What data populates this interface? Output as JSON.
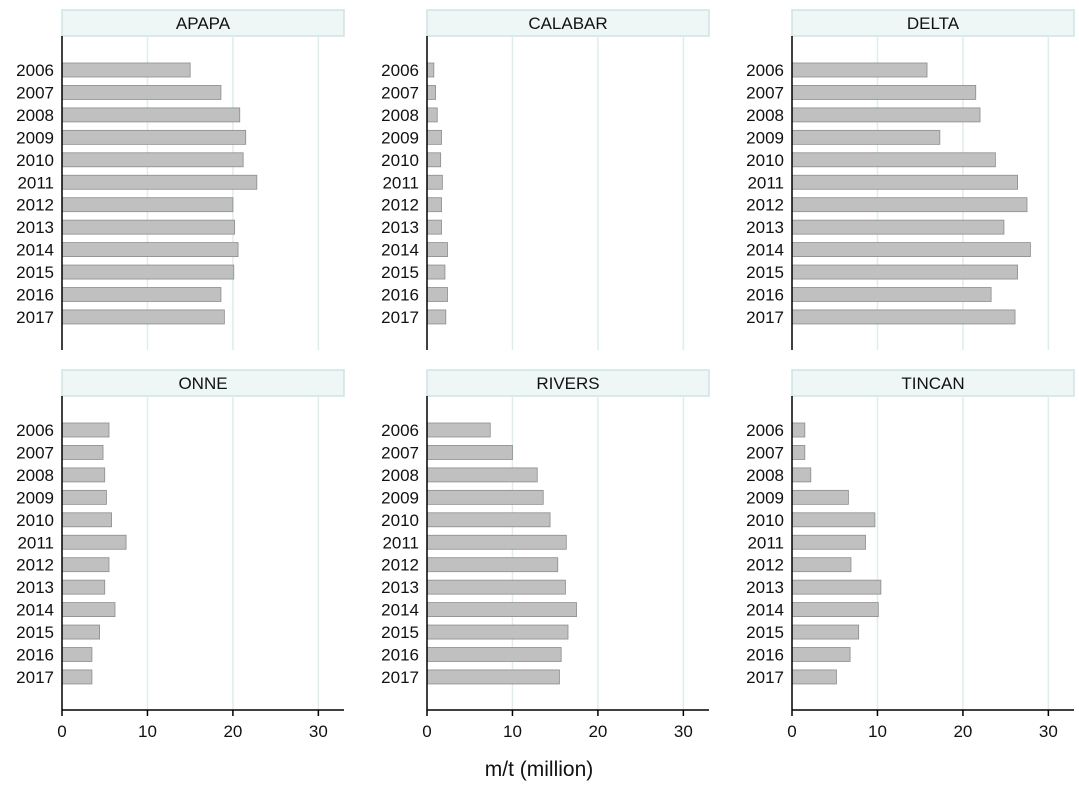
{
  "chart_data": {
    "type": "bar",
    "orientation": "horizontal",
    "xlabel": "m/t (million)",
    "xlim": [
      0,
      33
    ],
    "xticks": [
      0,
      10,
      20,
      30
    ],
    "categories": [
      "2006",
      "2007",
      "2008",
      "2009",
      "2010",
      "2011",
      "2012",
      "2013",
      "2014",
      "2015",
      "2016",
      "2017"
    ],
    "grid": "vertical",
    "bar_color": "#c0c0c0",
    "grid_color": "#ddeeee",
    "strip_color": "#eef6f6",
    "panels": [
      {
        "name": "APAPA",
        "values": [
          15.0,
          18.6,
          20.8,
          21.5,
          21.2,
          22.8,
          20.0,
          20.2,
          20.6,
          20.1,
          18.6,
          19.0
        ]
      },
      {
        "name": "CALABAR",
        "values": [
          0.8,
          1.0,
          1.2,
          1.7,
          1.6,
          1.8,
          1.7,
          1.7,
          2.4,
          2.1,
          2.4,
          2.2
        ]
      },
      {
        "name": "DELTA",
        "values": [
          15.8,
          21.5,
          22.0,
          17.3,
          23.8,
          26.4,
          27.5,
          24.8,
          27.9,
          26.4,
          23.3,
          26.1
        ]
      },
      {
        "name": "ONNE",
        "values": [
          5.5,
          4.8,
          5.0,
          5.2,
          5.8,
          7.5,
          5.5,
          5.0,
          6.2,
          4.4,
          3.5,
          3.5
        ]
      },
      {
        "name": "RIVERS",
        "values": [
          7.4,
          10.0,
          12.9,
          13.6,
          14.4,
          16.3,
          15.3,
          16.2,
          17.5,
          16.5,
          15.7,
          15.5
        ]
      },
      {
        "name": "TINCAN",
        "values": [
          1.5,
          1.5,
          2.2,
          6.6,
          9.7,
          8.6,
          6.9,
          10.4,
          10.1,
          7.8,
          6.8,
          5.2
        ]
      }
    ]
  }
}
